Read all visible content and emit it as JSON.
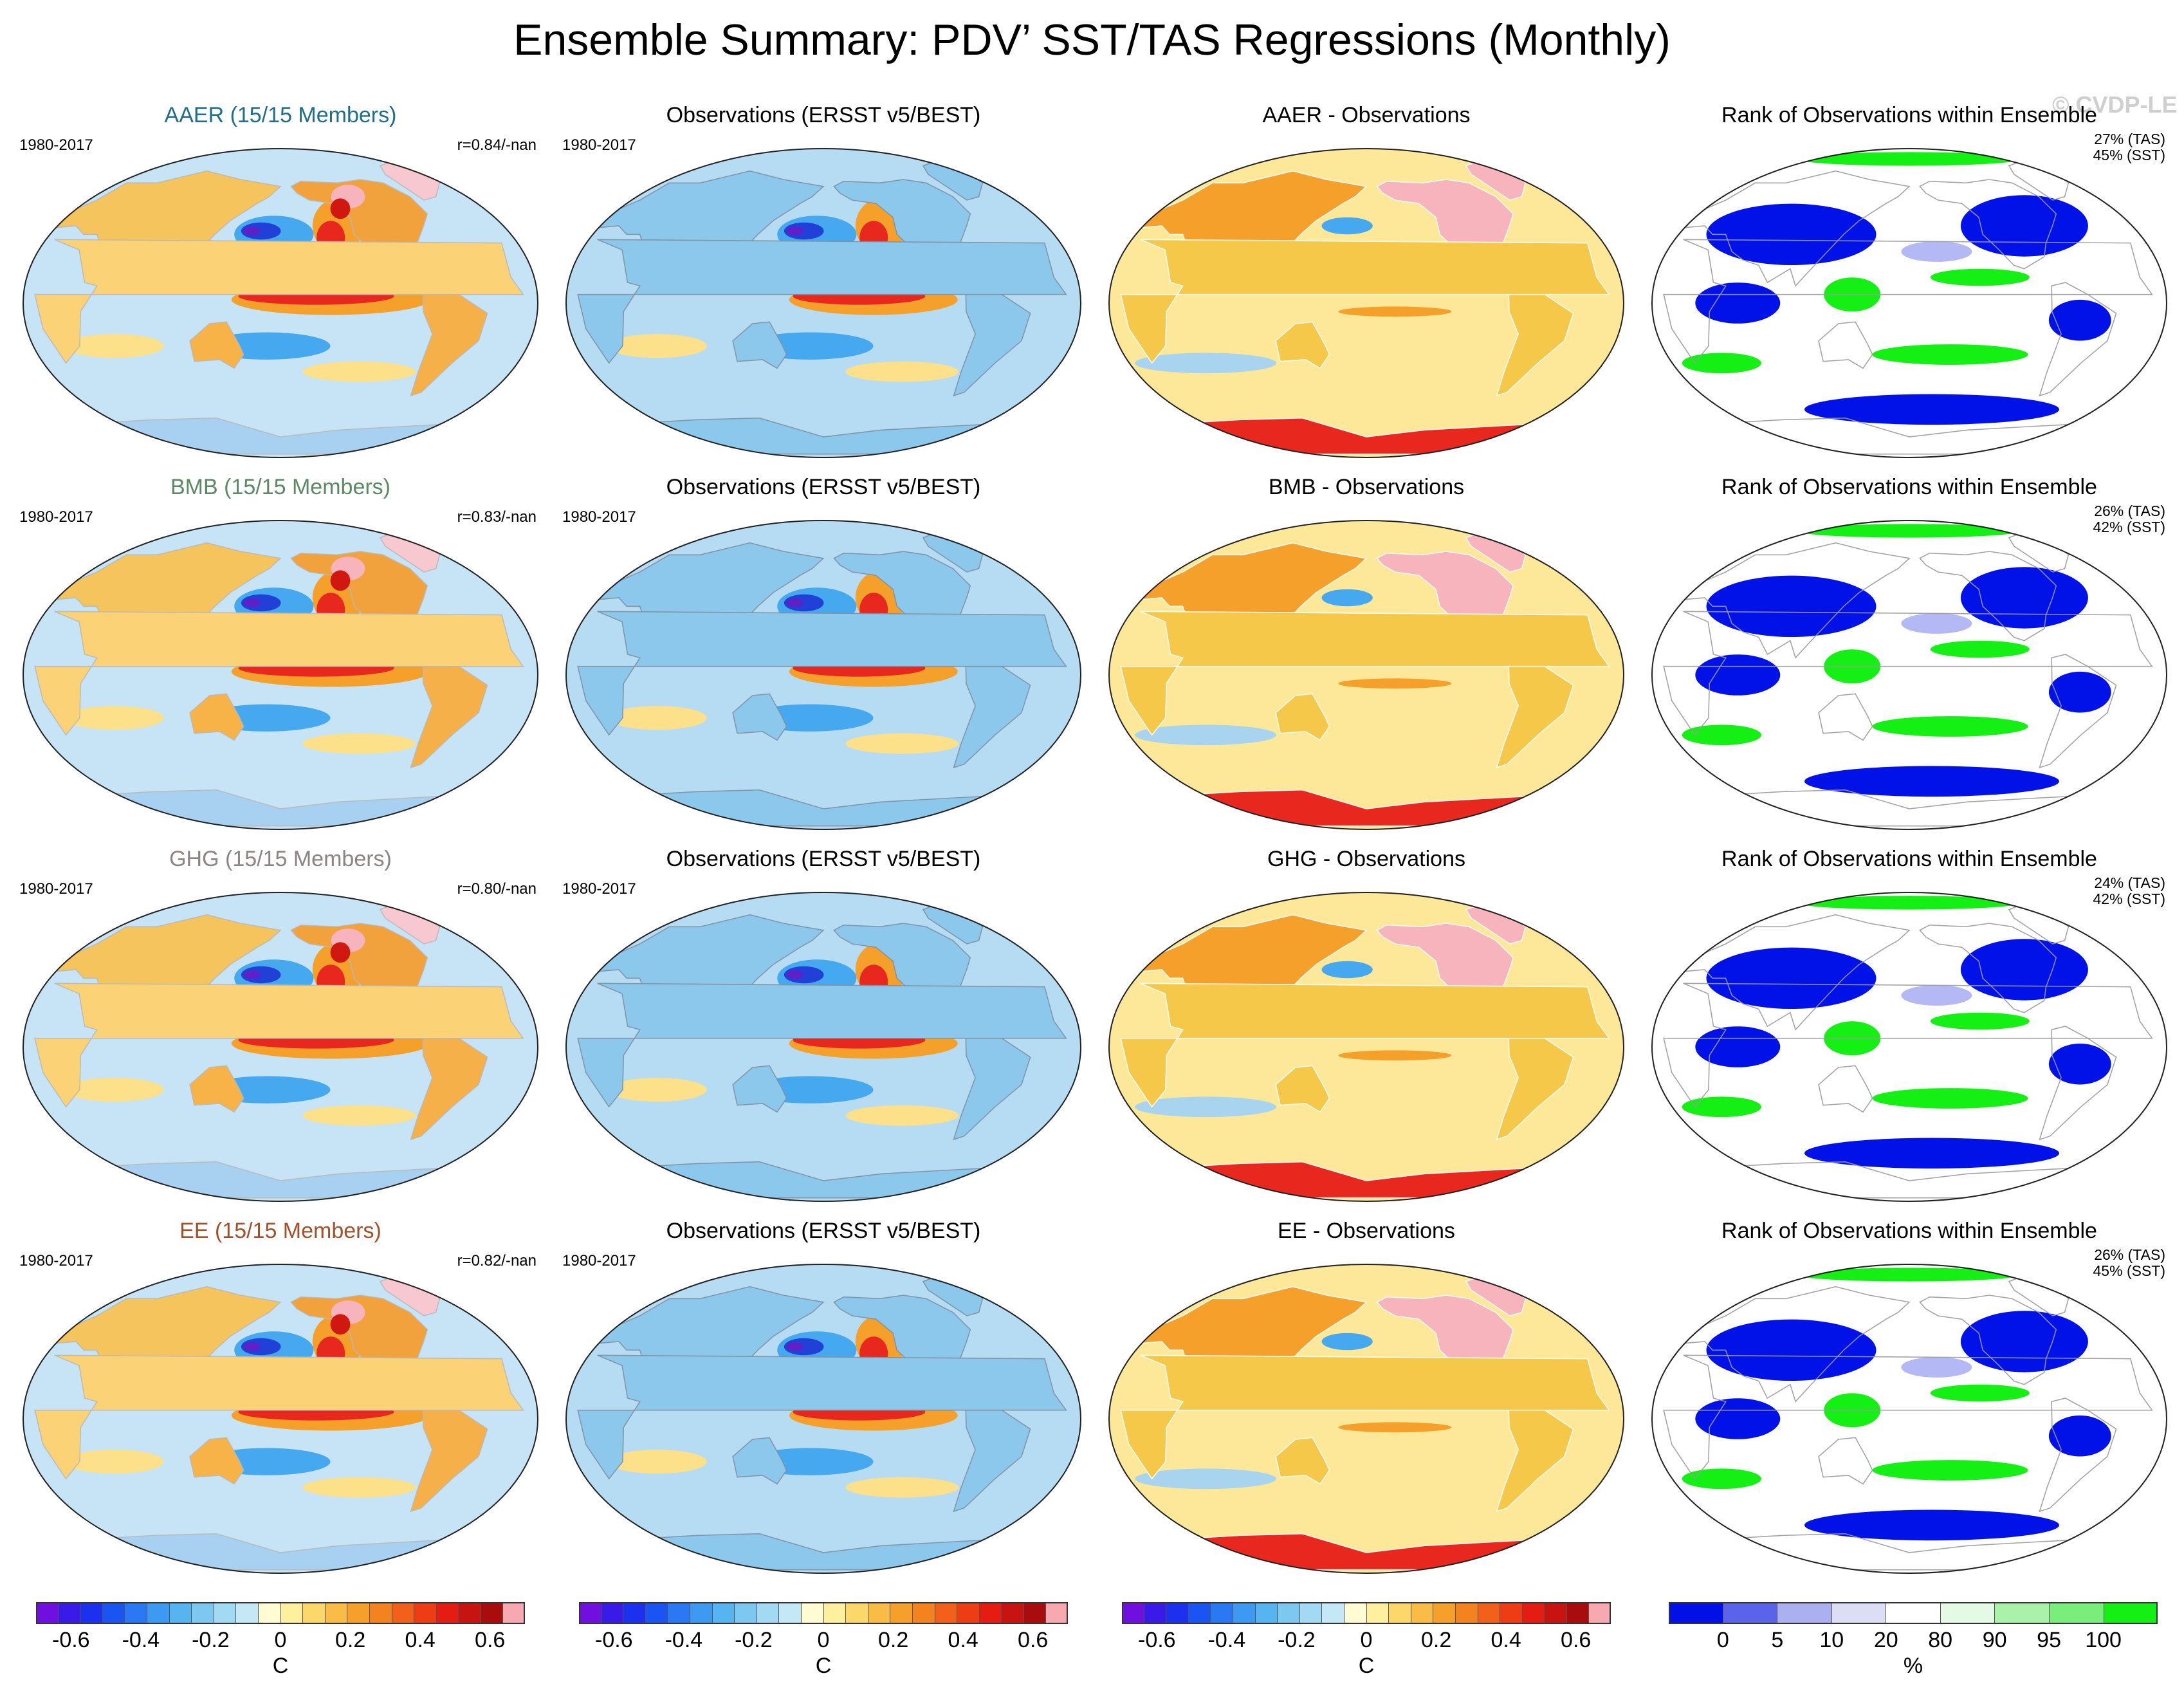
{
  "title": "Ensemble Summary: PDV’ SST/TAS Regressions (Monthly)",
  "copyright": "© CVDP-LE",
  "colors": {
    "ocean_light": "#a8d4f0",
    "land_obs": "#8cc8ec",
    "warm_strong": "#e8281e",
    "warm_mid": "#f5a02a",
    "warm_light": "#fce08a",
    "cool_mid": "#46a8ee",
    "cool_deep": "#2040d8",
    "purple": "#6020c8",
    "pink": "#f8b4bc",
    "rank_blue": "#0012e8",
    "rank_green": "#14f014",
    "rank_lavender": "#b4b8f4"
  },
  "rows": [
    {
      "model_title": "AAER (15/15 Members)",
      "model_title_color": "#1e6e8c",
      "period": "1980-2017",
      "correlation": "r=0.84/-nan",
      "obs_title": "Observations (ERSST v5/BEST)",
      "obs_period": "1980-2017",
      "diff_title": "AAER - Observations",
      "rank_title": "Rank of Observations within Ensemble",
      "rank_tas": "27% (TAS)",
      "rank_sst": "45% (SST)"
    },
    {
      "model_title": "BMB (15/15 Members)",
      "model_title_color": "#5a8a64",
      "period": "1980-2017",
      "correlation": "r=0.83/-nan",
      "obs_title": "Observations (ERSST v5/BEST)",
      "obs_period": "1980-2017",
      "diff_title": "BMB - Observations",
      "rank_title": "Rank of Observations within Ensemble",
      "rank_tas": "26% (TAS)",
      "rank_sst": "42% (SST)"
    },
    {
      "model_title": "GHG (15/15 Members)",
      "model_title_color": "#8c8484",
      "period": "1980-2017",
      "correlation": "r=0.80/-nan",
      "obs_title": "Observations (ERSST v5/BEST)",
      "obs_period": "1980-2017",
      "diff_title": "GHG - Observations",
      "rank_title": "Rank of Observations within Ensemble",
      "rank_tas": "24% (TAS)",
      "rank_sst": "42% (SST)"
    },
    {
      "model_title": "EE (15/15 Members)",
      "model_title_color": "#a0502a",
      "period": "1980-2017",
      "correlation": "r=0.82/-nan",
      "obs_title": "Observations (ERSST v5/BEST)",
      "obs_period": "1980-2017",
      "diff_title": "EE - Observations",
      "rank_title": "Rank of Observations within Ensemble",
      "rank_tas": "26% (TAS)",
      "rank_sst": "45% (SST)"
    }
  ],
  "colorbars": {
    "temperature": {
      "colors": [
        "#7010e0",
        "#3a1ae8",
        "#1c30f0",
        "#1a54f2",
        "#2a78f4",
        "#3c9af2",
        "#56b4f0",
        "#7cc8f0",
        "#a2daf4",
        "#c4e8f6",
        "#fffbd2",
        "#fff0a0",
        "#fcd86a",
        "#f9bc46",
        "#f6a02c",
        "#f4821e",
        "#f2601a",
        "#ee3c14",
        "#e41c12",
        "#c81410",
        "#a80c0c",
        "#f8a8b0"
      ],
      "tick_labels": [
        "-0.6",
        "-0.4",
        "-0.2",
        "0",
        "0.2",
        "0.4",
        "0.6"
      ],
      "tick_values": [
        -0.6,
        -0.4,
        -0.2,
        0,
        0.2,
        0.4,
        0.6
      ],
      "min": -0.7,
      "max": 0.7,
      "unit": "C"
    },
    "rank": {
      "colors": [
        "#0010e6",
        "#5a64ea",
        "#aab0f0",
        "#dcdef6",
        "#ffffff",
        "#e4fae4",
        "#aaf2aa",
        "#7aee7a",
        "#14f014"
      ],
      "tick_labels": [
        "0",
        "5",
        "10",
        "20",
        "80",
        "90",
        "95",
        "100"
      ],
      "tick_values": [
        0,
        5,
        10,
        20,
        80,
        90,
        95,
        100
      ],
      "unit": "%"
    }
  }
}
